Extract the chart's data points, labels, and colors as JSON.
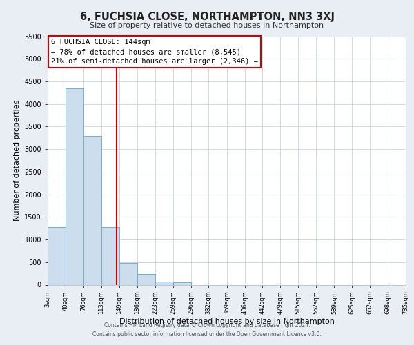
{
  "title": "6, FUCHSIA CLOSE, NORTHAMPTON, NN3 3XJ",
  "subtitle": "Size of property relative to detached houses in Northampton",
  "xlabel": "Distribution of detached houses by size in Northampton",
  "ylabel": "Number of detached properties",
  "bar_edges": [
    3,
    40,
    76,
    113,
    149,
    186,
    223,
    259,
    296,
    332,
    369,
    406,
    442,
    479,
    515,
    552,
    589,
    625,
    662,
    698,
    735
  ],
  "bar_heights": [
    1270,
    4350,
    3300,
    1270,
    480,
    230,
    75,
    55,
    0,
    0,
    0,
    0,
    0,
    0,
    0,
    0,
    0,
    0,
    0,
    0
  ],
  "bar_color": "#ccdded",
  "bar_edge_color": "#7aaec8",
  "vline_x": 144,
  "vline_color": "#cc0000",
  "annotation_title": "6 FUCHSIA CLOSE: 144sqm",
  "annotation_line1": "← 78% of detached houses are smaller (8,545)",
  "annotation_line2": "21% of semi-detached houses are larger (2,346) →",
  "annotation_box_color": "#ffffff",
  "annotation_box_edge": "#cc0000",
  "ylim": [
    0,
    5500
  ],
  "yticks": [
    0,
    500,
    1000,
    1500,
    2000,
    2500,
    3000,
    3500,
    4000,
    4500,
    5000,
    5500
  ],
  "tick_labels": [
    "3sqm",
    "40sqm",
    "76sqm",
    "113sqm",
    "149sqm",
    "186sqm",
    "223sqm",
    "259sqm",
    "296sqm",
    "332sqm",
    "369sqm",
    "406sqm",
    "442sqm",
    "479sqm",
    "515sqm",
    "552sqm",
    "589sqm",
    "625sqm",
    "662sqm",
    "698sqm",
    "735sqm"
  ],
  "footer_line1": "Contains HM Land Registry data © Crown copyright and database right 2024.",
  "footer_line2": "Contains public sector information licensed under the Open Government Licence v3.0.",
  "bg_color": "#e8eef4",
  "plot_bg_color": "#ffffff",
  "grid_color": "#c8d4e0"
}
